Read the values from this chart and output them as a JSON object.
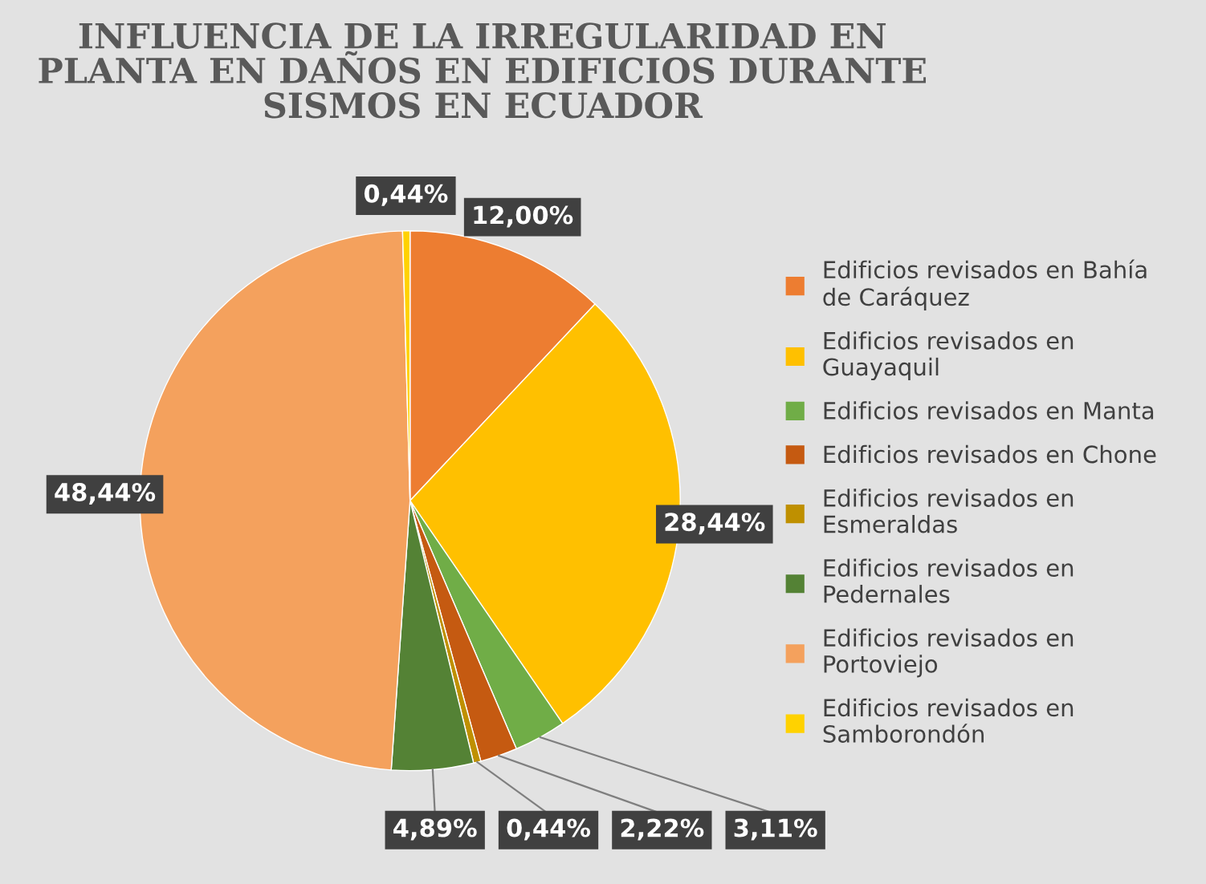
{
  "chart_data": {
    "type": "pie",
    "title": "INFLUENCIA DE LA IRREGULARIDAD EN\nPLANTA EN DAÑOS EN EDIFICIOS DURANTE\nSISMOS EN ECUADOR",
    "categories": [
      "Edificios revisados en Bahía de Caráquez",
      "Edificios revisados en Guayaquil",
      "Edificios revisados en Manta",
      "Edificios revisados en Chone",
      "Edificios revisados en Esmeraldas",
      "Edificios revisados en Pedernales",
      "Edificios revisados en Portoviejo",
      "Edificios revisados en Samborondón"
    ],
    "values": [
      12.0,
      28.44,
      3.11,
      2.22,
      0.44,
      4.89,
      48.44,
      0.44
    ],
    "value_labels": [
      "12,00%",
      "28,44%",
      "3,11%",
      "2,22%",
      "0,44%",
      "4,89%",
      "48,44%",
      "0,44%"
    ],
    "colors": [
      "#ed7d31",
      "#ffc000",
      "#70ad47",
      "#c55a11",
      "#bf9000",
      "#548235",
      "#f4a15d",
      "#ffd200"
    ],
    "legend": "right"
  }
}
